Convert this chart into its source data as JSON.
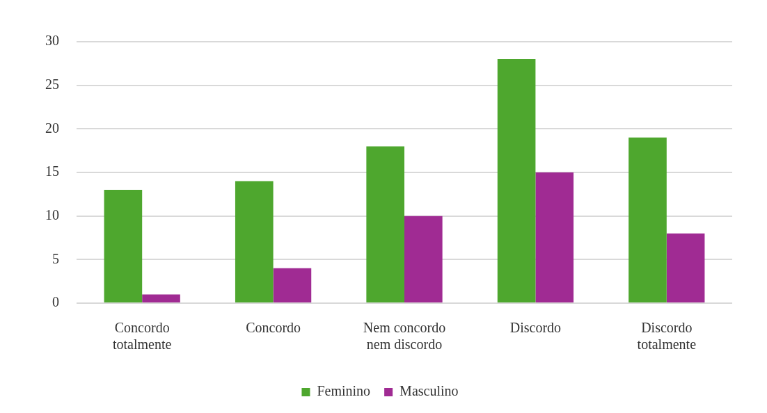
{
  "chart_data": {
    "type": "bar",
    "categories": [
      "Concordo totalmente",
      "Concordo",
      "Nem concordo nem discordo",
      "Discordo",
      "Discordo totalmente"
    ],
    "series": [
      {
        "name": "Feminino",
        "color": "#4ea72e",
        "values": [
          13,
          14,
          18,
          28,
          19
        ]
      },
      {
        "name": "Masculino",
        "color": "#a02b93",
        "values": [
          1,
          4,
          10,
          15,
          8
        ]
      }
    ],
    "ylim": [
      0,
      30
    ],
    "yticks": [
      0,
      5,
      10,
      15,
      20,
      25,
      30
    ],
    "grid": "y",
    "legend": "bottom"
  }
}
